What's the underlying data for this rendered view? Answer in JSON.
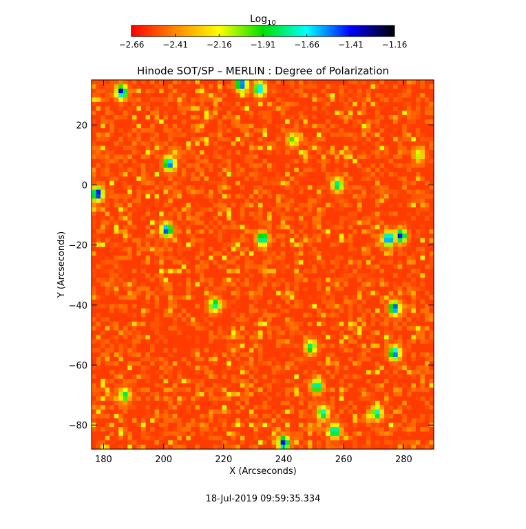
{
  "chart_data": {
    "type": "heatmap",
    "title": "Hinode SOT/SP – MERLIN : Degree of Polarization",
    "xlabel": "X (Arcseconds)",
    "ylabel": "Y (Arcseconds)",
    "xlim": [
      176,
      290
    ],
    "ylim": [
      -88,
      35
    ],
    "x_ticks": [
      180,
      200,
      220,
      240,
      260,
      280
    ],
    "y_ticks": [
      20,
      0,
      -20,
      -40,
      -60,
      -80
    ],
    "x_tick_labels": [
      "180",
      "200",
      "220",
      "240",
      "260",
      "280"
    ],
    "y_tick_labels": [
      "20",
      "0",
      "−20",
      "−40",
      "−60",
      "−80"
    ],
    "colorbar": {
      "label_base": "Log",
      "label_sub": "10",
      "range": [
        -2.66,
        -1.16
      ],
      "ticks": [
        -2.66,
        -2.41,
        -2.16,
        -1.91,
        -1.66,
        -1.41,
        -1.16
      ],
      "tick_labels": [
        "−2.66",
        "−2.41",
        "−2.16",
        "−1.91",
        "−1.66",
        "−1.41",
        "−1.16"
      ],
      "colormap": [
        "#ff0000",
        "#ff8800",
        "#ffff00",
        "#00e000",
        "#00ffff",
        "#0000ff",
        "#000000"
      ]
    },
    "footer": "18-Jul-2019 09:59:35.334",
    "background_level": -2.55,
    "strong_patches": [
      {
        "x": 186,
        "y": 31,
        "value": -1.35
      },
      {
        "x": 226,
        "y": 33.5,
        "value": -1.4
      },
      {
        "x": 232,
        "y": 32,
        "value": -1.55
      },
      {
        "x": 178,
        "y": -3,
        "value": -1.3
      },
      {
        "x": 202,
        "y": 7,
        "value": -1.45
      },
      {
        "x": 201,
        "y": -15,
        "value": -1.4
      },
      {
        "x": 233,
        "y": -18,
        "value": -1.6
      },
      {
        "x": 275,
        "y": -18,
        "value": -1.35
      },
      {
        "x": 279,
        "y": -17,
        "value": -1.4
      },
      {
        "x": 277,
        "y": -41,
        "value": -1.4
      },
      {
        "x": 277,
        "y": -56,
        "value": -1.45
      },
      {
        "x": 240,
        "y": -86,
        "value": -1.4
      },
      {
        "x": 257,
        "y": -82,
        "value": -1.55
      },
      {
        "x": 251,
        "y": -67,
        "value": -1.6
      },
      {
        "x": 253,
        "y": -76,
        "value": -1.65
      },
      {
        "x": 271,
        "y": -76,
        "value": -1.65
      },
      {
        "x": 217,
        "y": -40,
        "value": -1.7
      },
      {
        "x": 258,
        "y": 0,
        "value": -1.7
      },
      {
        "x": 249,
        "y": -54,
        "value": -1.75
      },
      {
        "x": 187,
        "y": -70,
        "value": -1.8
      },
      {
        "x": 243,
        "y": 15,
        "value": -1.95
      },
      {
        "x": 285,
        "y": 10,
        "value": -2.05
      }
    ]
  }
}
